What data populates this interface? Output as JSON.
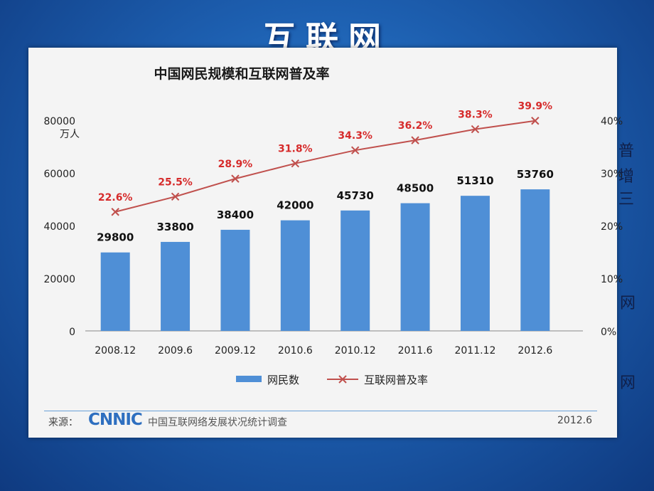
{
  "slide": {
    "title": "互联网",
    "side_text": [
      "普",
      "增",
      "三",
      "网",
      "网"
    ]
  },
  "source": {
    "label": "来源：",
    "logo": "CNNIC",
    "name": "中国互联网络发展状况统计调查",
    "date": "2012.6"
  },
  "chart_data": {
    "type": "bar",
    "title": "中国网民规模和互联网普及率",
    "categories": [
      "2008.12",
      "2009.6",
      "2009.12",
      "2010.6",
      "2010.12",
      "2011.6",
      "2011.12",
      "2012.6"
    ],
    "y_left": {
      "unit": "万人",
      "min": 0,
      "max": 80000,
      "ticks": [
        0,
        20000,
        40000,
        60000,
        80000
      ]
    },
    "y_right": {
      "min": 0,
      "max": 40,
      "ticks": [
        "0%",
        "10%",
        "20%",
        "30%",
        "40%"
      ]
    },
    "series": [
      {
        "name": "网民数",
        "type": "bar",
        "color": "#4f8fd6",
        "values": [
          29800,
          33800,
          38400,
          42000,
          45730,
          48500,
          51310,
          53760
        ]
      },
      {
        "name": "互联网普及率",
        "type": "line",
        "color": "#c0504d",
        "label_color": "#d62b2b",
        "values": [
          22.6,
          25.5,
          28.9,
          31.8,
          34.3,
          36.2,
          38.3,
          39.9
        ],
        "labels": [
          "22.6%",
          "25.5%",
          "28.9%",
          "31.8%",
          "34.3%",
          "36.2%",
          "38.3%",
          "39.9%"
        ]
      }
    ],
    "legend_placement": "bottom",
    "grid": false
  }
}
